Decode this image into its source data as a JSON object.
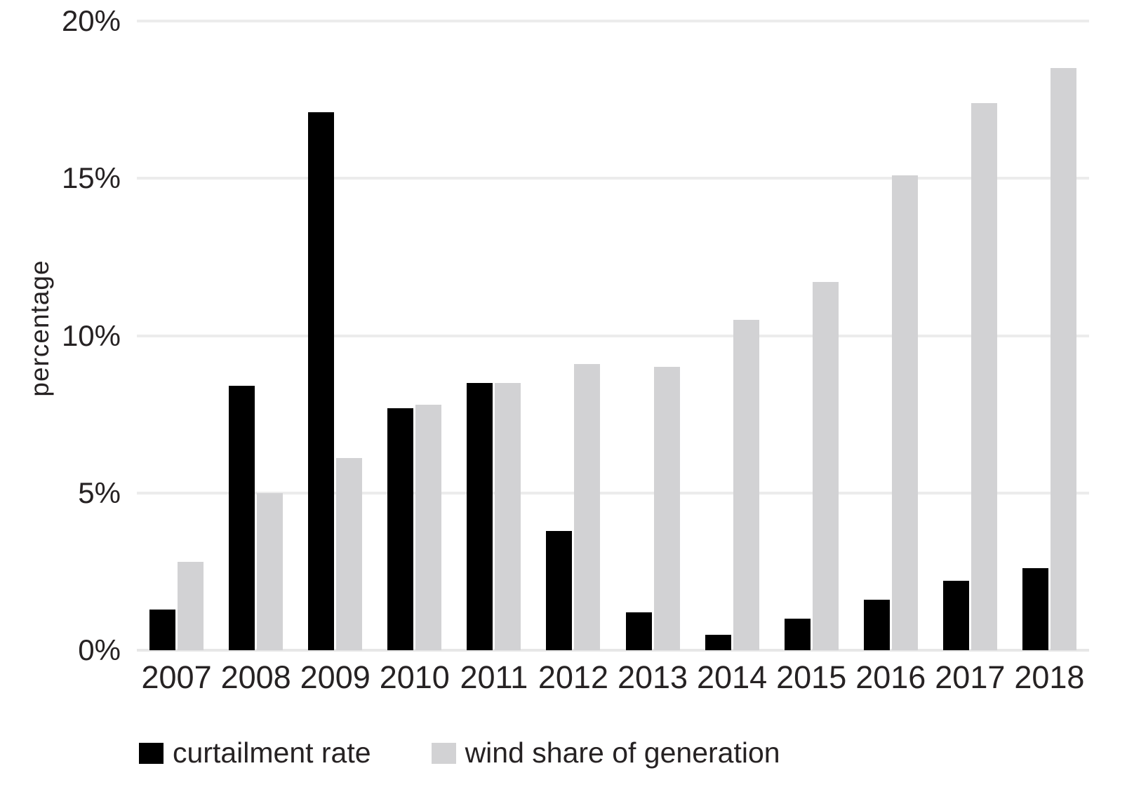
{
  "chart_data": {
    "type": "bar",
    "title": "",
    "xlabel": "",
    "ylabel": "percentage",
    "categories": [
      "2007",
      "2008",
      "2009",
      "2010",
      "2011",
      "2012",
      "2013",
      "2014",
      "2015",
      "2016",
      "2017",
      "2018"
    ],
    "series": [
      {
        "name": "curtailment rate",
        "key": "curtailment-rate",
        "color": "#000000",
        "values": [
          1.3,
          8.4,
          17.1,
          7.7,
          8.5,
          3.8,
          1.2,
          0.5,
          1.0,
          1.6,
          2.2,
          2.6
        ]
      },
      {
        "name": "wind share of generation",
        "key": "wind-share-of-generation",
        "color": "#d2d2d4",
        "values": [
          2.8,
          5.0,
          6.1,
          7.8,
          8.5,
          9.1,
          9.0,
          10.5,
          11.7,
          15.1,
          17.4,
          18.5
        ]
      }
    ],
    "ylim": [
      0,
      20
    ],
    "yticks": [
      {
        "label": "20%",
        "value": 20
      },
      {
        "label": "15%",
        "value": 15
      },
      {
        "label": "10%",
        "value": 10
      },
      {
        "label": "5%",
        "value": 5
      },
      {
        "label": "0%",
        "value": 0
      }
    ],
    "grid": "horizontal",
    "legend_position": "bottom",
    "gridline_color": "#ececec",
    "baseline_color": "#e7e7e7",
    "text_color": "#262223"
  }
}
